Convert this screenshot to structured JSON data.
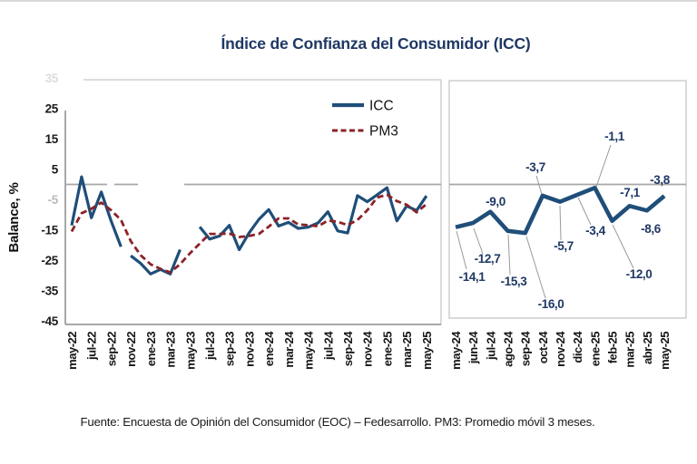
{
  "title": "Índice de Confianza del Consumidor (ICC)",
  "footer": "Fuente: Encuesta de Opinión del Consumidor (EOC) – Fedesarrollo. PM3: Promedio móvil 3 meses.",
  "legend": {
    "icc": "ICC",
    "pm3": "PM3"
  },
  "colors": {
    "icc_line": "#1F4E79",
    "pm3_line": "#8B2328",
    "data_label": "#1F3864",
    "title": "#1F3864",
    "zero_line": "#A6A6A6",
    "axis": "#8C8C8C",
    "panel_border": "#C6C6C6"
  },
  "chart_data": [
    {
      "id": "left-panel",
      "type": "line",
      "ylabel": "Balance, %",
      "ylim": [
        -46,
        35
      ],
      "yticks": [
        25,
        15,
        5,
        -5,
        -15,
        -25,
        -35,
        -45
      ],
      "faded_yticks": [
        35,
        -5
      ],
      "grid": false,
      "zero_line": true,
      "legend_position": "top-right",
      "categories": [
        "may-22",
        "jun-22",
        "jul-22",
        "ago-22",
        "sep-22",
        "oct-22",
        "nov-22",
        "dic-22",
        "ene-23",
        "feb-23",
        "mar-23",
        "abr-23",
        "may-23",
        "jun-23",
        "jul-23",
        "ago-23",
        "sep-23",
        "oct-23",
        "nov-23",
        "dic-23",
        "ene-24",
        "feb-24",
        "mar-24",
        "abr-24",
        "may-24",
        "jun-24",
        "jul-24",
        "ago-24",
        "sep-24",
        "oct-24",
        "nov-24",
        "dic-24",
        "ene-25",
        "feb-25",
        "mar-25",
        "abr-25",
        "may-25"
      ],
      "xtick_labels": [
        "may-22",
        "jul-22",
        "sep-22",
        "nov-22",
        "ene-23",
        "mar-23",
        "may-23",
        "jul-23",
        "sep-23",
        "nov-23",
        "ene-24",
        "mar-24",
        "may-24",
        "jul-24",
        "sep-24",
        "nov-24",
        "ene-25",
        "mar-25",
        "may-25"
      ],
      "series": [
        {
          "name": "ICC",
          "style": "solid",
          "values": [
            -13.5,
            2.5,
            -11,
            -2.5,
            -12,
            -20.5,
            -23.5,
            -26,
            -29.5,
            -28,
            -29.5,
            -21.5,
            -17,
            -14,
            -18,
            -17,
            -13.5,
            -21.5,
            -16,
            -11.5,
            -8.3,
            -13.7,
            -12.5,
            -14.5,
            -14.1,
            -12.7,
            -9.0,
            -15.3,
            -16.0,
            -3.7,
            -5.7,
            -3.4,
            -1.1,
            -12.0,
            -7.1,
            -8.6,
            -3.8
          ],
          "visible_segments": [
            [
              0,
              5
            ],
            [
              6,
              11
            ],
            [
              13,
              36
            ]
          ]
        },
        {
          "name": "PM3",
          "style": "dashed",
          "values": [
            -15.5,
            -9.5,
            -8.0,
            -6.0,
            -8.5,
            -11.7,
            -18.7,
            -23.3,
            -26.3,
            -27.8,
            -29.0,
            -26.3,
            -22.7,
            -19.5,
            -16.3,
            -16.3,
            -16.2,
            -17.3,
            -17.0,
            -16.3,
            -13.9,
            -11.2,
            -11.2,
            -13.2,
            -13.4,
            -13.8,
            -11.9,
            -12.3,
            -13.4,
            -11.7,
            -8.5,
            -4.3,
            -3.4,
            -5.5,
            -6.7,
            -9.2,
            -6.5
          ]
        }
      ]
    },
    {
      "id": "right-panel",
      "type": "line",
      "grid": false,
      "zero_line": true,
      "categories": [
        "may-24",
        "jun-24",
        "jul-24",
        "ago-24",
        "sep-24",
        "oct-24",
        "nov-24",
        "dic-24",
        "ene-25",
        "feb-25",
        "mar-25",
        "abr-25",
        "may-25"
      ],
      "series": [
        {
          "name": "ICC",
          "style": "solid",
          "values": [
            -14.1,
            -12.7,
            -9.0,
            -15.3,
            -16.0,
            -3.7,
            -5.7,
            -3.4,
            -1.1,
            -12.0,
            -7.1,
            -8.6,
            -3.8
          ],
          "data_labels": [
            "-14,1",
            "-12,7",
            "-9,0",
            "-15,3",
            "-16,0",
            "-3,7",
            "-5,7",
            "-3,4",
            "-1,1",
            "-12,0",
            "-7,1",
            "-8,6",
            "-3,8"
          ]
        }
      ]
    }
  ]
}
